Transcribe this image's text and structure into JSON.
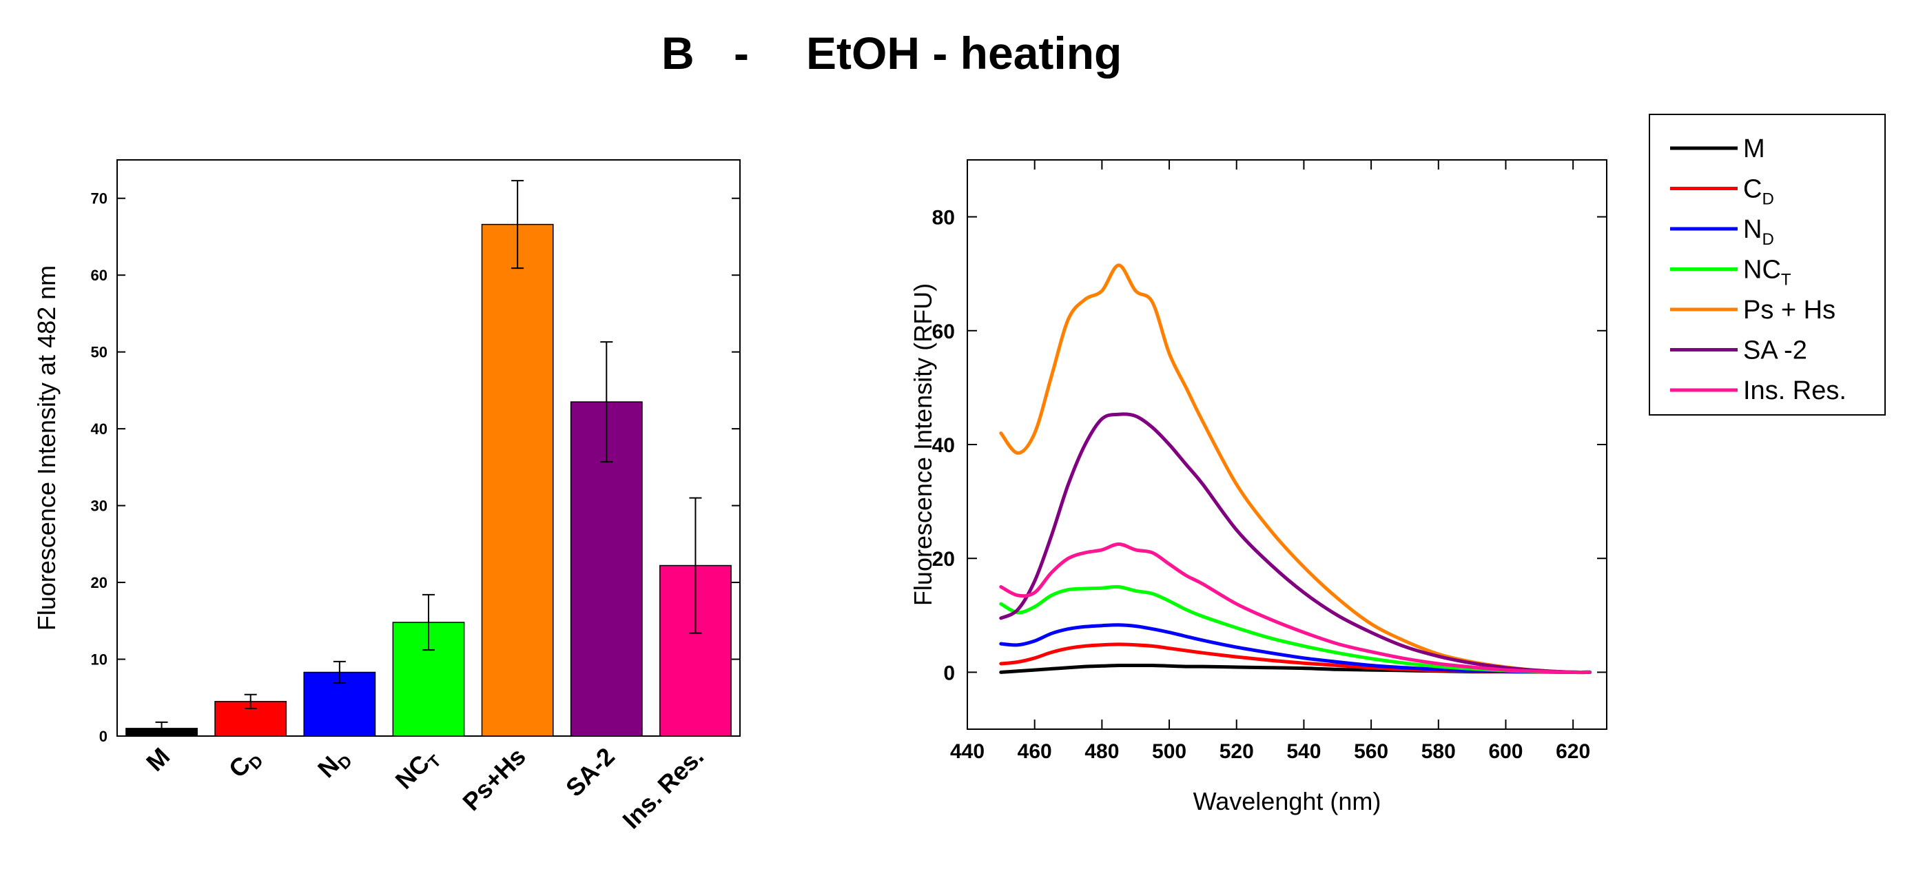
{
  "figure": {
    "title_letter": "B",
    "title_dash": "-",
    "title_text": "EtOH - heating"
  },
  "chart_data": [
    {
      "type": "bar",
      "title": "",
      "xlabel": "",
      "ylabel": "Fluorescence Intensity at 482 nm",
      "ylim": [
        0,
        75
      ],
      "yticks": [
        0,
        10,
        20,
        30,
        40,
        50,
        60,
        70
      ],
      "categories": [
        {
          "main": "M",
          "sub": ""
        },
        {
          "main": "C",
          "sub": "D"
        },
        {
          "main": "N",
          "sub": "D"
        },
        {
          "main": "NC",
          "sub": "T"
        },
        {
          "main": "Ps+Hs",
          "sub": ""
        },
        {
          "main": "SA-2",
          "sub": ""
        },
        {
          "main": "Ins. Res.",
          "sub": ""
        }
      ],
      "values": [
        1.0,
        4.5,
        8.3,
        14.8,
        66.6,
        43.5,
        22.2
      ],
      "errors": [
        0.8,
        0.9,
        1.4,
        3.6,
        5.7,
        7.8,
        8.8
      ],
      "colors": [
        "#000000",
        "#ff0000",
        "#0000ff",
        "#00ff00",
        "#ff8000",
        "#800080",
        "#ff0080"
      ]
    },
    {
      "type": "line",
      "title": "",
      "xlabel": "Wavelenght (nm)",
      "ylabel": "Fluorescence Intensity (RFU)",
      "xlim": [
        440,
        630
      ],
      "ylim": [
        -10,
        90
      ],
      "xticks": [
        440,
        460,
        480,
        500,
        520,
        540,
        560,
        580,
        600,
        620
      ],
      "yticks": [
        0,
        20,
        40,
        60,
        80
      ],
      "legend_position": "outside-top-right",
      "x": [
        450,
        455,
        460,
        465,
        470,
        475,
        480,
        485,
        490,
        495,
        500,
        505,
        510,
        520,
        530,
        540,
        550,
        560,
        570,
        580,
        590,
        600,
        610,
        620,
        625
      ],
      "series": [
        {
          "name": "M",
          "sub": "",
          "color": "#000000",
          "values": [
            0,
            0.2,
            0.4,
            0.6,
            0.8,
            1.0,
            1.1,
            1.2,
            1.2,
            1.2,
            1.1,
            1.0,
            1.0,
            0.9,
            0.8,
            0.7,
            0.5,
            0.4,
            0.3,
            0.2,
            0.1,
            0.1,
            0.05,
            0,
            0
          ]
        },
        {
          "name": "C",
          "sub": "D",
          "color": "#ff0000",
          "values": [
            1.5,
            1.8,
            2.5,
            3.5,
            4.2,
            4.6,
            4.8,
            4.9,
            4.8,
            4.6,
            4.2,
            3.8,
            3.4,
            2.7,
            2.1,
            1.6,
            1.2,
            0.8,
            0.5,
            0.3,
            0.2,
            0.1,
            0.05,
            0,
            0
          ]
        },
        {
          "name": "N",
          "sub": "D",
          "color": "#0000ff",
          "values": [
            5,
            4.8,
            5.5,
            6.8,
            7.6,
            8.0,
            8.2,
            8.3,
            8.1,
            7.6,
            7.0,
            6.3,
            5.6,
            4.4,
            3.4,
            2.5,
            1.8,
            1.2,
            0.8,
            0.5,
            0.3,
            0.15,
            0.05,
            0,
            0
          ]
        },
        {
          "name": "NC",
          "sub": "T",
          "color": "#00ff00",
          "values": [
            12,
            10.5,
            11.5,
            13.5,
            14.5,
            14.7,
            14.8,
            15.0,
            14.3,
            13.8,
            12.5,
            11.0,
            9.8,
            7.8,
            6.0,
            4.6,
            3.4,
            2.4,
            1.6,
            1.0,
            0.6,
            0.3,
            0.1,
            0,
            0
          ]
        },
        {
          "name": "Ps + Hs",
          "sub": "",
          "color": "#ff8000",
          "values": [
            42,
            38.5,
            42,
            52,
            62,
            65.5,
            67,
            71.5,
            67,
            65,
            56,
            50,
            44,
            33,
            25,
            18.5,
            13,
            8.5,
            5.5,
            3.2,
            1.8,
            0.9,
            0.3,
            0,
            0
          ]
        },
        {
          "name": "SA -2",
          "sub": "",
          "color": "#800080",
          "values": [
            9.5,
            11,
            16,
            24,
            33,
            40,
            44.5,
            45.3,
            45,
            43,
            40,
            36.5,
            33,
            25,
            19,
            14,
            10,
            7,
            4.5,
            2.8,
            1.6,
            0.8,
            0.3,
            0,
            0
          ]
        },
        {
          "name": "Ins. Res.",
          "sub": "",
          "color": "#ff1493",
          "values": [
            15,
            13.5,
            14,
            17.5,
            20,
            21,
            21.5,
            22.5,
            21.5,
            21,
            19,
            17,
            15.5,
            12,
            9.3,
            7,
            5,
            3.6,
            2.4,
            1.5,
            0.9,
            0.4,
            0.15,
            0,
            0
          ]
        }
      ]
    }
  ]
}
